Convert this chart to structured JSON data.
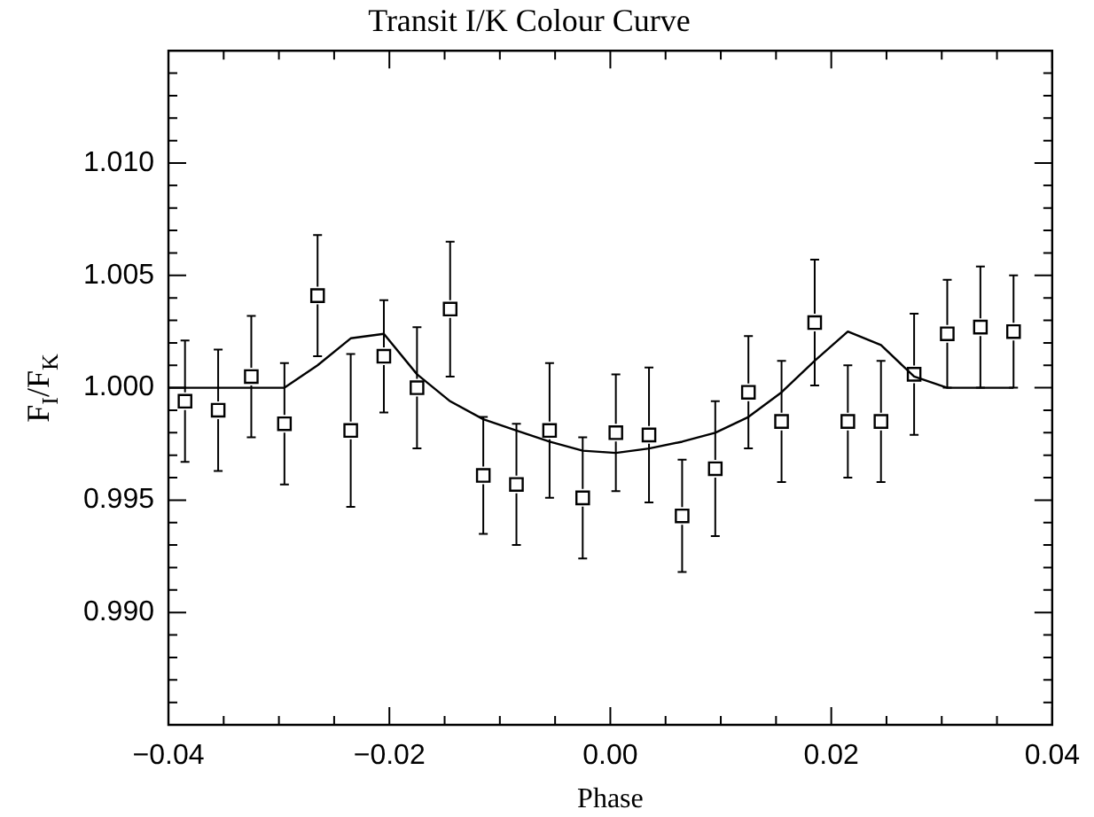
{
  "chart_data": {
    "type": "scatter",
    "title": "Transit I/K Colour Curve",
    "xlabel": "Phase",
    "ylabel": "F$_{I}$/F$_{K}$",
    "xlim": [
      -0.04,
      0.04
    ],
    "xticks": [
      {
        "value": -0.04,
        "label": "−0.04"
      },
      {
        "value": -0.035,
        "label": null
      },
      {
        "value": -0.03,
        "label": null
      },
      {
        "value": -0.025,
        "label": null
      },
      {
        "value": -0.02,
        "label": "−0.02"
      },
      {
        "value": -0.015,
        "label": null
      },
      {
        "value": -0.01,
        "label": null
      },
      {
        "value": -0.005,
        "label": null
      },
      {
        "value": 0,
        "label": "0.00"
      },
      {
        "value": 0.005,
        "label": null
      },
      {
        "value": 0.01,
        "label": null
      },
      {
        "value": 0.015,
        "label": null
      },
      {
        "value": 0.02,
        "label": "0.02"
      },
      {
        "value": 0.025,
        "label": null
      },
      {
        "value": 0.03,
        "label": null
      },
      {
        "value": 0.035,
        "label": null
      },
      {
        "value": 0.04,
        "label": "0.04"
      }
    ],
    "ylim": [
      0.985,
      1.015
    ],
    "yticks": [
      {
        "value": 0.986,
        "label": null
      },
      {
        "value": 0.987,
        "label": null
      },
      {
        "value": 0.988,
        "label": null
      },
      {
        "value": 0.989,
        "label": null
      },
      {
        "value": 0.99,
        "label": "0.990"
      },
      {
        "value": 0.991,
        "label": null
      },
      {
        "value": 0.992,
        "label": null
      },
      {
        "value": 0.993,
        "label": null
      },
      {
        "value": 0.994,
        "label": null
      },
      {
        "value": 0.995,
        "label": "0.995"
      },
      {
        "value": 0.996,
        "label": null
      },
      {
        "value": 0.997,
        "label": null
      },
      {
        "value": 0.998,
        "label": null
      },
      {
        "value": 0.999,
        "label": null
      },
      {
        "value": 1,
        "label": "1.000"
      },
      {
        "value": 1.001,
        "label": null
      },
      {
        "value": 1.002,
        "label": null
      },
      {
        "value": 1.003,
        "label": null
      },
      {
        "value": 1.004,
        "label": null
      },
      {
        "value": 1.005,
        "label": "1.005"
      },
      {
        "value": 1.006,
        "label": null
      },
      {
        "value": 1.007,
        "label": null
      },
      {
        "value": 1.008,
        "label": null
      },
      {
        "value": 1.009,
        "label": null
      },
      {
        "value": 1.01,
        "label": "1.010"
      },
      {
        "value": 1.011,
        "label": null
      },
      {
        "value": 1.012,
        "label": null
      },
      {
        "value": 1.013,
        "label": null
      },
      {
        "value": 1.014,
        "label": null
      }
    ],
    "grid": false,
    "legend": false,
    "marker": "square",
    "series": [
      {
        "color": "#000000",
        "x": [
          -0.0385,
          -0.0355,
          -0.0325,
          -0.0295,
          -0.0265,
          -0.0235,
          -0.0205,
          -0.0175,
          -0.0145,
          -0.0115,
          -0.0085,
          -0.0055,
          -0.0025,
          0.0005,
          0.0035,
          0.0065,
          0.0095,
          0.0125,
          0.0155,
          0.0185,
          0.0215,
          0.0245,
          0.0275,
          0.0305,
          0.0335,
          0.0365
        ],
        "values": [
          0.9994,
          0.999,
          1.0005,
          0.9984,
          1.0041,
          0.9981,
          1.0014,
          1.0,
          1.0035,
          0.9961,
          0.9957,
          0.9981,
          0.9951,
          0.998,
          0.9979,
          0.9943,
          0.9964,
          0.9998,
          0.9985,
          1.0029,
          0.9985,
          0.9985,
          1.0006,
          1.0024,
          1.0027,
          1.0025
        ],
        "errors": [
          0.0027,
          0.0027,
          0.0027,
          0.0027,
          0.0027,
          0.0034,
          0.0025,
          0.0027,
          0.003,
          0.0026,
          0.0027,
          0.003,
          0.0027,
          0.0026,
          0.003,
          0.0025,
          0.003,
          0.0025,
          0.0027,
          0.0028,
          0.0025,
          0.0027,
          0.0027,
          0.0024,
          0.0027,
          0.0025
        ]
      },
      {
        "type": "line",
        "color": "#000000",
        "marker": "none",
        "line_style": "solid",
        "x": [
          -0.04,
          -0.0295,
          -0.0265,
          -0.0235,
          -0.0205,
          -0.0175,
          -0.0145,
          -0.0115,
          -0.0085,
          -0.0055,
          -0.0025,
          0.0005,
          0.0035,
          0.0065,
          0.0095,
          0.0125,
          0.0155,
          0.0185,
          0.0215,
          0.0245,
          0.0275,
          0.0305,
          0.0365
        ],
        "values": [
          1.0,
          1.0,
          1.001,
          1.0022,
          1.0024,
          1.0006,
          0.9994,
          0.9986,
          0.9981,
          0.9976,
          0.9972,
          0.9971,
          0.9973,
          0.9976,
          0.998,
          0.9987,
          0.9998,
          1.0012,
          1.0025,
          1.0019,
          1.0005,
          1.0,
          1.0
        ]
      }
    ]
  }
}
